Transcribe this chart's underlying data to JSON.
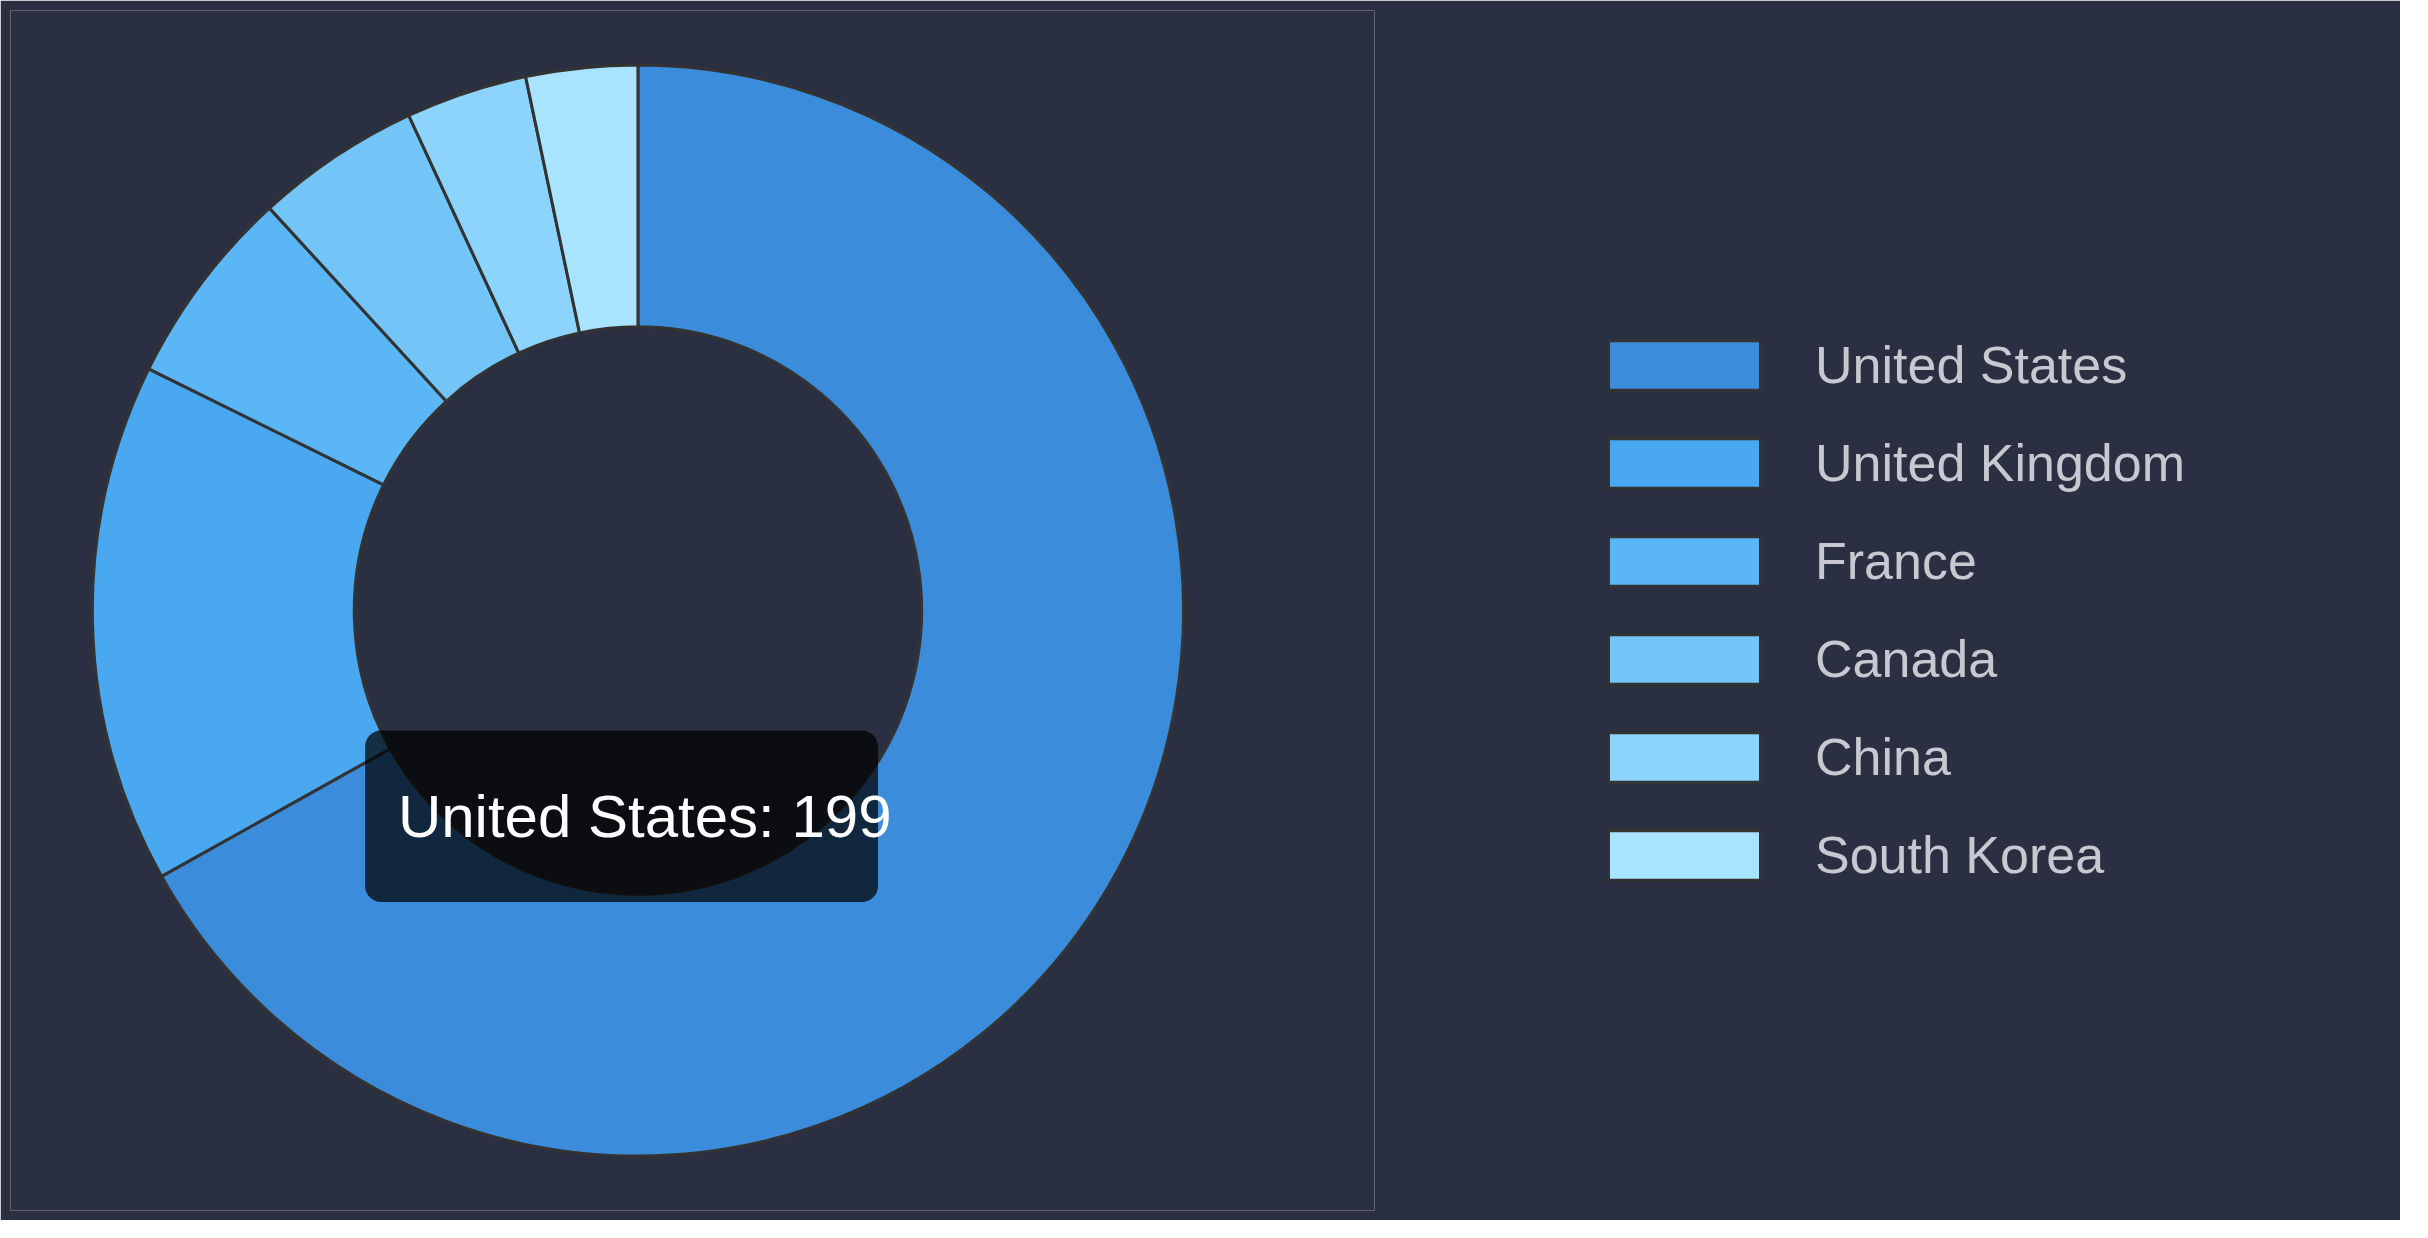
{
  "chart_data": {
    "type": "donut",
    "categories": [
      "United States",
      "United Kingdom",
      "France",
      "Canada",
      "China",
      "South Korea"
    ],
    "values": [
      66.9,
      15.4,
      5.9,
      4.9,
      3.6,
      3.3
    ],
    "colors": [
      "#3b8ddb",
      "#4aa8f0",
      "#5bb6f5",
      "#73c4f7",
      "#8cd4fb",
      "#a8e4fd"
    ],
    "legend": "right",
    "annotations": [
      "United States: 199"
    ]
  }
}
